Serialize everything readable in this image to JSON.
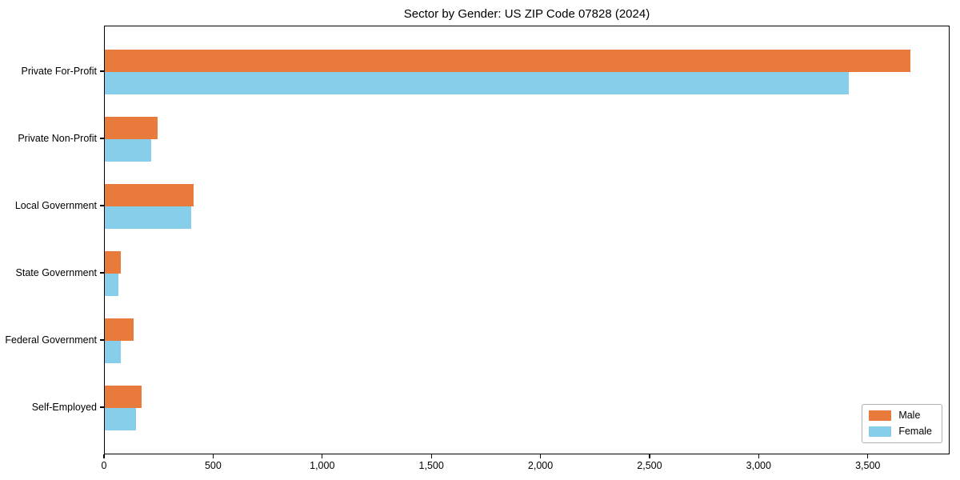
{
  "chart_data": {
    "type": "bar",
    "orientation": "horizontal",
    "title": "Sector by Gender: US ZIP Code 07828 (2024)",
    "xlabel": "",
    "ylabel": "",
    "categories": [
      "Private For-Profit",
      "Private Non-Profit",
      "Local Government",
      "State Government",
      "Federal Government",
      "Self-Employed"
    ],
    "series": [
      {
        "name": "Male",
        "color": "#E87A3C",
        "values": [
          3690,
          242,
          406,
          72,
          131,
          170
        ]
      },
      {
        "name": "Female",
        "color": "#87CEEB",
        "values": [
          3410,
          214,
          396,
          64,
          72,
          144
        ]
      }
    ],
    "xlim": [
      0,
      3875
    ],
    "x_ticks": [
      {
        "value": 0,
        "label": "0"
      },
      {
        "value": 500,
        "label": "500"
      },
      {
        "value": 1000,
        "label": "1,000"
      },
      {
        "value": 1500,
        "label": "1,500"
      },
      {
        "value": 2000,
        "label": "2,000"
      },
      {
        "value": 2500,
        "label": "2,500"
      },
      {
        "value": 3000,
        "label": "3,000"
      },
      {
        "value": 3500,
        "label": "3,500"
      }
    ],
    "grid": false,
    "legend": {
      "position": "lower right",
      "entries": [
        "Male",
        "Female"
      ]
    },
    "frame_color": "#000000",
    "background_color": "#ffffff"
  }
}
